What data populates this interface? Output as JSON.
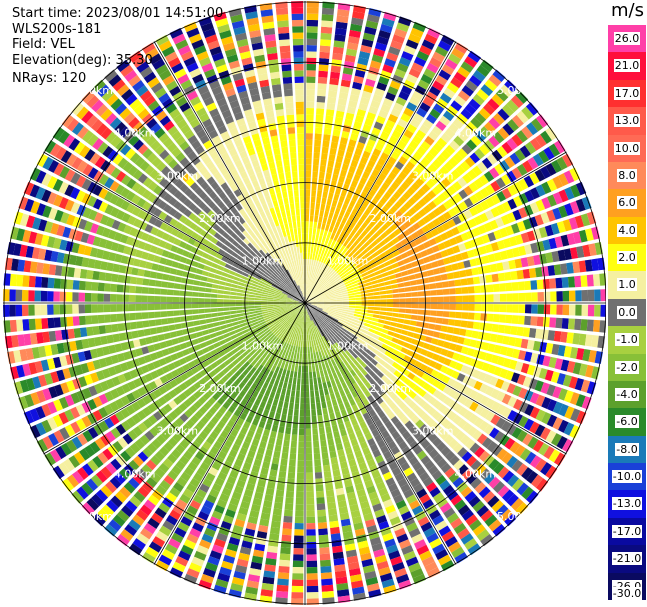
{
  "header": {
    "start_time": "Start time: 2023/08/01 14:51:00",
    "instrument": "WLS200s-181",
    "field": "Field: VEL",
    "elevation": "Elevation(deg): 35.30",
    "nrays": "NRays: 120"
  },
  "colorbar": {
    "unit": "m/s",
    "levels": [
      "26.0",
      "21.0",
      "17.0",
      "13.0",
      "10.0",
      "8.0",
      "6.0",
      "4.0",
      "2.0",
      "1.0",
      "0.0",
      "-1.0",
      "-2.0",
      "-4.0",
      "-6.0",
      "-8.0",
      "-10.0",
      "-13.0",
      "-17.0",
      "-21.0",
      "-26.0",
      "-30.0"
    ],
    "colors": [
      "#ff3fa8",
      "#ff0f3c",
      "#ff3030",
      "#ff5a4a",
      "#ff6a55",
      "#ff8a5a",
      "#ffa020",
      "#ffc400",
      "#ffff10",
      "#f5f0a0",
      "#707070",
      "#a8d040",
      "#88c038",
      "#5ca02c",
      "#2a8a2a",
      "#1a7ab8",
      "#1a40d8",
      "#1010e0",
      "#0a0aa0",
      "#0a0a80",
      "#0a0a60"
    ]
  },
  "chart_data": {
    "type": "ppi_polar",
    "field": "VEL",
    "units": "m/s",
    "n_rays": 120,
    "elevation_deg": 35.3,
    "range_ring_labels": [
      "1.00km",
      "2.00km",
      "3.00km",
      "4.00km",
      "5.00km"
    ],
    "range_rings_km": [
      1,
      2,
      3,
      4,
      5
    ],
    "max_range_km": 5.0,
    "radial_profile_by_azimuth": [
      {
        "azimuth_deg": 0,
        "velocity_ms": [
          0.0,
          1.0,
          2.0,
          2.0,
          2.0,
          0.0,
          2.0,
          4.0
        ]
      },
      {
        "azimuth_deg": 90,
        "velocity_ms": [
          0.0,
          1.0,
          4.0,
          6.0,
          2.0,
          2.0,
          0.0,
          2.0
        ]
      },
      {
        "azimuth_deg": 180,
        "velocity_ms": [
          -1.0,
          -2.0,
          -6.0,
          -4.0,
          -2.0,
          -2.0,
          -4.0,
          -2.0
        ]
      },
      {
        "azimuth_deg": 270,
        "velocity_ms": [
          -1.0,
          -2.0,
          -2.0,
          -4.0,
          -2.0,
          -4.0,
          -6.0,
          -2.0
        ]
      }
    ]
  }
}
